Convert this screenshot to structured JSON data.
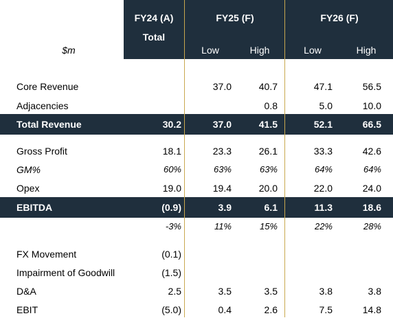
{
  "header": {
    "units": "$m",
    "fy24_label": "FY24 (A)",
    "fy24_sub": "Total",
    "fy25_label": "FY25 (F)",
    "fy26_label": "FY26 (F)",
    "low_label": "Low",
    "high_label": "High"
  },
  "rows": {
    "core_revenue": {
      "label": "Core Revenue",
      "fy24": "",
      "fy25_low": "37.0",
      "fy25_high": "40.7",
      "fy26_low": "47.1",
      "fy26_high": "56.5"
    },
    "adjacencies": {
      "label": "Adjacencies",
      "fy24": "",
      "fy25_low": "",
      "fy25_high": "0.8",
      "fy26_low": "5.0",
      "fy26_high": "10.0"
    },
    "total_revenue": {
      "label": "Total Revenue",
      "fy24": "30.2",
      "fy25_low": "37.0",
      "fy25_high": "41.5",
      "fy26_low": "52.1",
      "fy26_high": "66.5"
    },
    "gross_profit": {
      "label": "Gross Profit",
      "fy24": "18.1",
      "fy25_low": "23.3",
      "fy25_high": "26.1",
      "fy26_low": "33.3",
      "fy26_high": "42.6"
    },
    "gm_pct": {
      "label": "GM%",
      "fy24": "60%",
      "fy25_low": "63%",
      "fy25_high": "63%",
      "fy26_low": "64%",
      "fy26_high": "64%"
    },
    "opex": {
      "label": "Opex",
      "fy24": "19.0",
      "fy25_low": "19.4",
      "fy25_high": "20.0",
      "fy26_low": "22.0",
      "fy26_high": "24.0"
    },
    "ebitda": {
      "label": "EBITDA",
      "fy24": "(0.9)",
      "fy25_low": "3.9",
      "fy25_high": "6.1",
      "fy26_low": "11.3",
      "fy26_high": "18.6"
    },
    "ebitda_pct": {
      "label": "",
      "fy24": "-3%",
      "fy25_low": "11%",
      "fy25_high": "15%",
      "fy26_low": "22%",
      "fy26_high": "28%"
    },
    "fx_movement": {
      "label": "FX Movement",
      "fy24": "(0.1)",
      "fy25_low": "",
      "fy25_high": "",
      "fy26_low": "",
      "fy26_high": ""
    },
    "impairment": {
      "label": "Impairment of Goodwill",
      "fy24": "(1.5)",
      "fy25_low": "",
      "fy25_high": "",
      "fy26_low": "",
      "fy26_high": ""
    },
    "da": {
      "label": "D&A",
      "fy24": "2.5",
      "fy25_low": "3.5",
      "fy25_high": "3.5",
      "fy26_low": "3.8",
      "fy26_high": "3.8"
    },
    "ebit": {
      "label": "EBIT",
      "fy24": "(5.0)",
      "fy25_low": "0.4",
      "fy25_high": "2.6",
      "fy26_low": "7.5",
      "fy26_high": "14.8"
    }
  },
  "colors": {
    "header_fill": "#1f2f3d",
    "divider": "#c9a84f"
  }
}
